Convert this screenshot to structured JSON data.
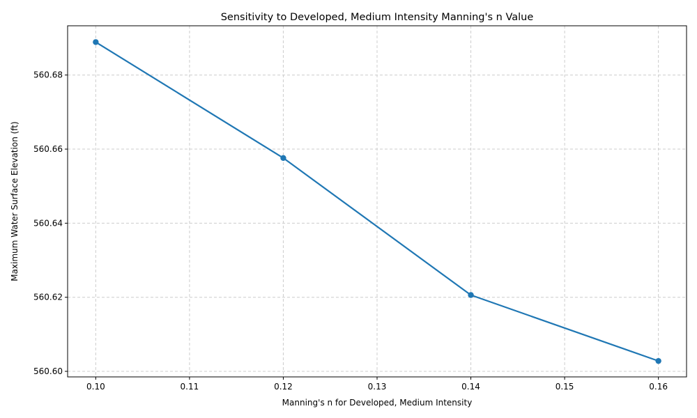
{
  "chart_data": {
    "type": "line",
    "title": "Sensitivity to Developed, Medium Intensity Manning's n Value",
    "xlabel": "Manning's n for Developed, Medium Intensity",
    "ylabel": "Maximum Water Surface Elevation (ft)",
    "x": [
      0.1,
      0.12,
      0.14,
      0.16
    ],
    "series": [
      {
        "values": [
          560.6889,
          560.6576,
          560.6206,
          560.6028
        ]
      }
    ],
    "xlim": [
      0.097,
      0.163
    ],
    "ylim": [
      560.5985,
      560.6933
    ],
    "x_ticks": [
      0.1,
      0.11,
      0.12,
      0.13,
      0.14,
      0.15,
      0.16
    ],
    "x_tick_labels": [
      "0.10",
      "0.11",
      "0.12",
      "0.13",
      "0.14",
      "0.15",
      "0.16"
    ],
    "y_ticks": [
      560.6,
      560.62,
      560.64,
      560.66,
      560.68
    ],
    "y_tick_labels": [
      "560.60",
      "560.62",
      "560.64",
      "560.66",
      "560.68"
    ],
    "grid": true,
    "line_color": "#1f77b4",
    "grid_color": "#cccccc"
  }
}
